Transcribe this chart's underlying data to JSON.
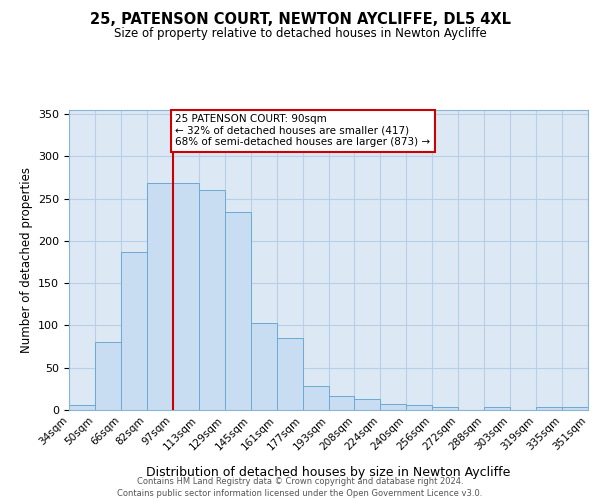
{
  "title": "25, PATENSON COURT, NEWTON AYCLIFFE, DL5 4XL",
  "subtitle": "Size of property relative to detached houses in Newton Aycliffe",
  "xlabel": "Distribution of detached houses by size in Newton Aycliffe",
  "ylabel": "Number of detached properties",
  "bar_values": [
    6,
    81,
    187,
    269,
    269,
    260,
    234,
    103,
    85,
    28,
    16,
    13,
    7,
    6,
    3,
    0,
    4,
    0,
    3,
    4
  ],
  "bar_labels": [
    "34sqm",
    "50sqm",
    "66sqm",
    "82sqm",
    "97sqm",
    "113sqm",
    "129sqm",
    "145sqm",
    "161sqm",
    "177sqm",
    "193sqm",
    "208sqm",
    "224sqm",
    "240sqm",
    "256sqm",
    "272sqm",
    "288sqm",
    "303sqm",
    "319sqm",
    "335sqm",
    "351sqm"
  ],
  "bar_color": "#c9ddf2",
  "bar_edge_color": "#6aaad4",
  "plot_bg_color": "#dde8f5",
  "background_color": "#ffffff",
  "grid_color": "#b8cfe8",
  "vline_color": "#cc0000",
  "annotation_title": "25 PATENSON COURT: 90sqm",
  "annotation_line1": "← 32% of detached houses are smaller (417)",
  "annotation_line2": "68% of semi-detached houses are larger (873) →",
  "annotation_box_color": "#ffffff",
  "annotation_border_color": "#cc0000",
  "ylim": [
    0,
    355
  ],
  "yticks": [
    0,
    50,
    100,
    150,
    200,
    250,
    300,
    350
  ],
  "footer1": "Contains HM Land Registry data © Crown copyright and database right 2024.",
  "footer2": "Contains public sector information licensed under the Open Government Licence v3.0."
}
